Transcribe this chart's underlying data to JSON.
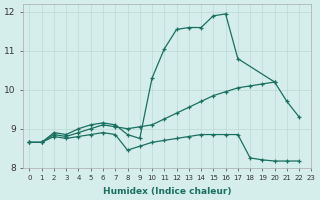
{
  "xlabel": "Humidex (Indice chaleur)",
  "xlim": [
    -0.5,
    23
  ],
  "ylim": [
    8,
    12.2
  ],
  "yticks": [
    8,
    9,
    10,
    11,
    12
  ],
  "xticks": [
    0,
    1,
    2,
    3,
    4,
    5,
    6,
    7,
    8,
    9,
    10,
    11,
    12,
    13,
    14,
    15,
    16,
    17,
    18,
    19,
    20,
    21,
    22,
    23
  ],
  "bg_color": "#d5eeeb",
  "grid_color": "#bcd9d6",
  "line_color": "#1a7060",
  "line1_x": [
    0,
    1,
    2,
    3,
    4,
    5,
    6,
    7,
    8,
    9,
    10,
    11,
    12,
    13,
    14,
    15,
    16,
    17,
    20,
    21,
    22
  ],
  "line1_y": [
    8.65,
    8.65,
    8.9,
    8.85,
    9.0,
    9.1,
    9.15,
    9.1,
    8.85,
    8.75,
    10.3,
    11.05,
    11.55,
    11.6,
    11.6,
    11.9,
    11.95,
    10.8,
    10.2,
    9.7,
    9.3
  ],
  "line2_x": [
    0,
    1,
    2,
    3,
    4,
    5,
    6,
    7,
    8,
    9,
    10,
    11,
    12,
    13,
    14,
    15,
    16,
    17,
    18,
    19,
    20
  ],
  "line2_y": [
    8.65,
    8.65,
    8.85,
    8.8,
    8.9,
    9.0,
    9.1,
    9.05,
    9.0,
    9.05,
    9.1,
    9.25,
    9.4,
    9.55,
    9.7,
    9.85,
    9.95,
    10.05,
    10.1,
    10.15,
    10.2
  ],
  "line3_x": [
    0,
    1,
    2,
    3,
    4,
    5,
    6,
    7,
    8,
    9,
    10,
    11,
    12,
    13,
    14,
    15,
    16,
    17,
    18,
    19,
    20,
    21,
    22
  ],
  "line3_y": [
    8.65,
    8.65,
    8.8,
    8.75,
    8.8,
    8.85,
    8.9,
    8.85,
    8.45,
    8.55,
    8.65,
    8.7,
    8.75,
    8.8,
    8.85,
    8.85,
    8.85,
    8.85,
    8.25,
    8.2,
    8.17,
    8.17,
    8.17
  ]
}
